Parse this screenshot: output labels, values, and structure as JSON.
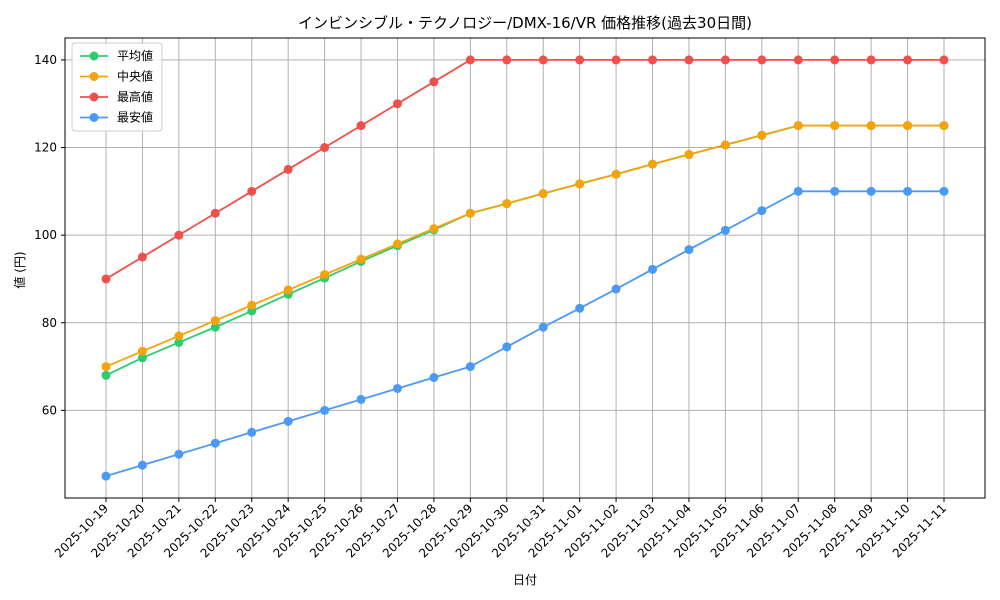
{
  "chart_data": {
    "type": "line",
    "title": "インビンシブル・テクノロジー/DMX-16/VR 価格推移(過去30日間)",
    "xlabel": "日付",
    "ylabel": "値 (円)",
    "ylim": [
      40,
      145
    ],
    "yticks": [
      60,
      80,
      100,
      120,
      140
    ],
    "grid": true,
    "legend_position": "top-left",
    "categories": [
      "2025-10-19",
      "2025-10-20",
      "2025-10-21",
      "2025-10-22",
      "2025-10-23",
      "2025-10-24",
      "2025-10-25",
      "2025-10-26",
      "2025-10-27",
      "2025-10-28",
      "2025-10-29",
      "2025-10-30",
      "2025-10-31",
      "2025-11-01",
      "2025-11-02",
      "2025-11-03",
      "2025-11-04",
      "2025-11-05",
      "2025-11-06",
      "2025-11-07",
      "2025-11-08",
      "2025-11-09",
      "2025-11-10",
      "2025-11-11"
    ],
    "series": [
      {
        "name": "平均値",
        "color": "#2ecc71",
        "values": [
          68,
          72,
          75.5,
          79,
          82.7,
          86.5,
          90.2,
          94,
          97.6,
          101.2,
          105,
          107.2,
          109.5,
          111.7,
          113.9,
          116.2,
          118.4,
          120.6,
          122.8,
          125,
          125,
          125,
          125,
          125
        ]
      },
      {
        "name": "中央値",
        "color": "#f5a30a",
        "values": [
          70,
          73.5,
          77,
          80.5,
          84,
          87.5,
          91,
          94.5,
          98,
          101.5,
          105,
          107.2,
          109.5,
          111.7,
          113.9,
          116.2,
          118.4,
          120.6,
          122.8,
          125,
          125,
          125,
          125,
          125
        ]
      },
      {
        "name": "最高値",
        "color": "#f0504c",
        "values": [
          90,
          95,
          100,
          105,
          110,
          115,
          120,
          125,
          130,
          135,
          140,
          140,
          140,
          140,
          140,
          140,
          140,
          140,
          140,
          140,
          140,
          140,
          140,
          140
        ]
      },
      {
        "name": "最安値",
        "color": "#4a9af5",
        "values": [
          45,
          47.5,
          50,
          52.5,
          55,
          57.5,
          60,
          62.5,
          65,
          67.5,
          70,
          74.5,
          79,
          83.3,
          87.7,
          92.2,
          96.7,
          101.1,
          105.6,
          110,
          110,
          110,
          110,
          110
        ]
      }
    ]
  }
}
